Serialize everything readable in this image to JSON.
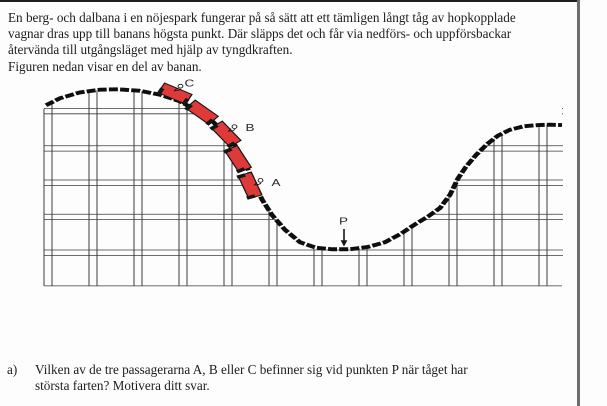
{
  "intro": {
    "lines": [
      "En berg- och dalbana i en nöjespark fungerar på så sätt att ett tämligen långt tåg av hopkopplade",
      "vagnar dras upp till banans högsta punkt. Där släpps det och får via nedförs- och uppförsbackar",
      "återvända till utgångsläget med hjälp av tyngdkraften.",
      "Figuren nedan visar en del av banan."
    ]
  },
  "figure": {
    "labels": {
      "car_top": "C",
      "car_middle": "B",
      "car_bottom": "A",
      "valley_point": "P"
    },
    "train_color": "#df3a3a",
    "train_outline_color": "#161616",
    "track_color": "#0e0e0e",
    "grid_color": "#3d3d3d"
  },
  "question": {
    "item_label": "a)",
    "lines": [
      "Vilken av de tre passagerarna A, B eller C befinner sig vid punkten P när tåget har",
      "största farten? Motivera ditt svar."
    ]
  }
}
